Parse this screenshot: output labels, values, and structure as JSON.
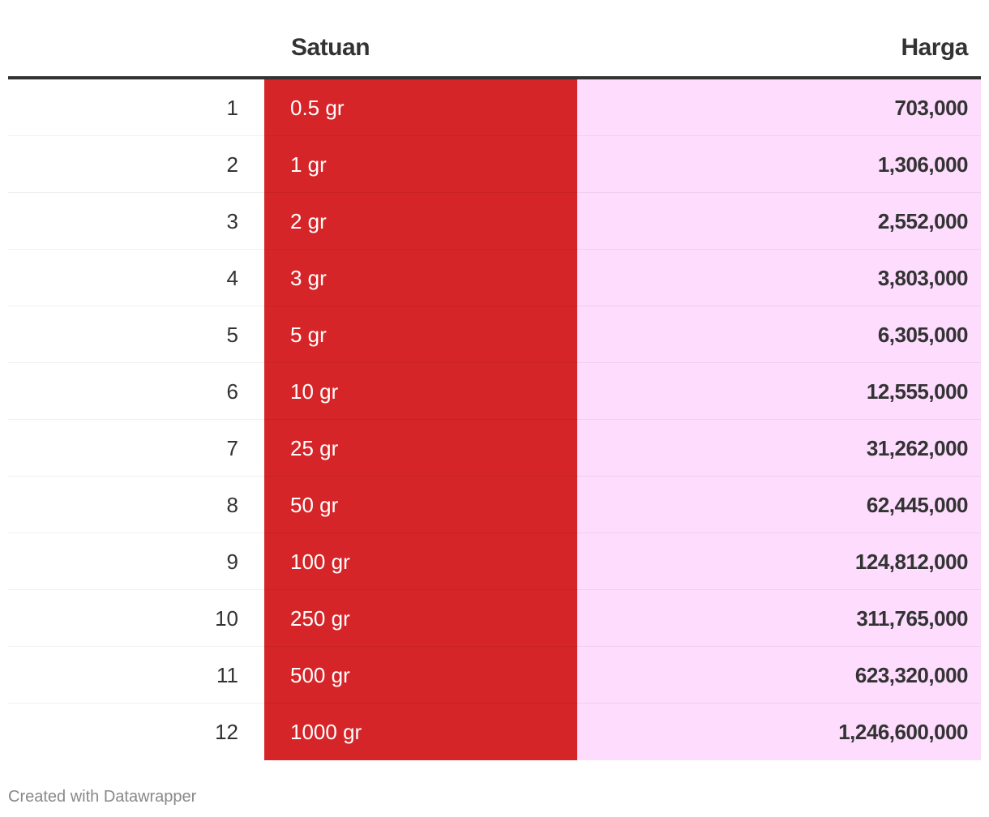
{
  "chart_data": {
    "type": "table",
    "columns": [
      "",
      "Satuan",
      "Harga"
    ],
    "rows": [
      {
        "index": "1",
        "satuan": "0.5 gr",
        "harga": "703,000",
        "harga_value": 703000
      },
      {
        "index": "2",
        "satuan": "1 gr",
        "harga": "1,306,000",
        "harga_value": 1306000
      },
      {
        "index": "3",
        "satuan": "2 gr",
        "harga": "2,552,000",
        "harga_value": 2552000
      },
      {
        "index": "4",
        "satuan": "3 gr",
        "harga": "3,803,000",
        "harga_value": 3803000
      },
      {
        "index": "5",
        "satuan": "5 gr",
        "harga": "6,305,000",
        "harga_value": 6305000
      },
      {
        "index": "6",
        "satuan": "10 gr",
        "harga": "12,555,000",
        "harga_value": 12555000
      },
      {
        "index": "7",
        "satuan": "25 gr",
        "harga": "31,262,000",
        "harga_value": 31262000
      },
      {
        "index": "8",
        "satuan": "50 gr",
        "harga": "62,445,000",
        "harga_value": 62445000
      },
      {
        "index": "9",
        "satuan": "100 gr",
        "harga": "124,812,000",
        "harga_value": 124812000
      },
      {
        "index": "10",
        "satuan": "250 gr",
        "harga": "311,765,000",
        "harga_value": 311765000
      },
      {
        "index": "11",
        "satuan": "500 gr",
        "harga": "623,320,000",
        "harga_value": 623320000
      },
      {
        "index": "12",
        "satuan": "1000 gr",
        "harga": "1,246,600,000",
        "harga_value": 1246600000
      }
    ]
  },
  "colors": {
    "satuan_column_bg": "#d52528",
    "harga_column_bg": "#fddcfd",
    "header_rule": "#333333"
  },
  "footer": {
    "credit": "Created with Datawrapper"
  }
}
